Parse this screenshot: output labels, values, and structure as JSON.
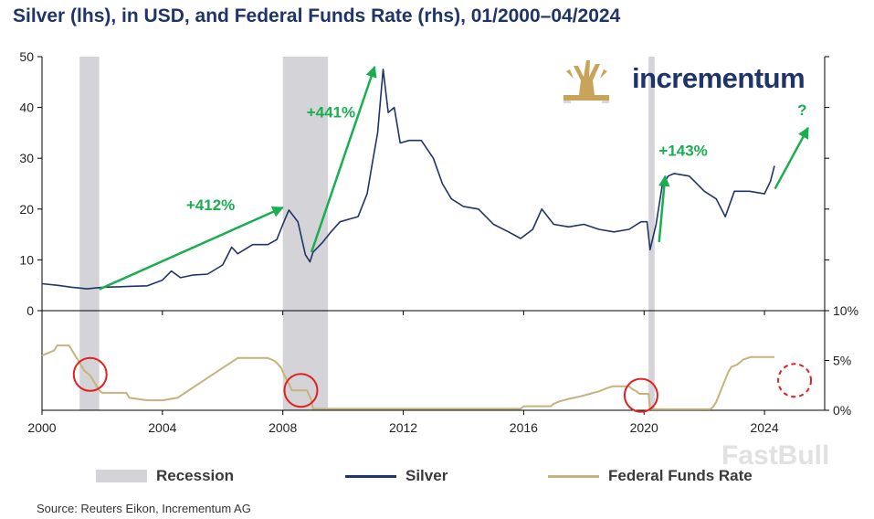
{
  "title": "Silver (lhs), in USD, and Federal Funds Rate (rhs), 01/2000–04/2024",
  "source": "Source: Reuters Eikon, Incrementum AG",
  "brand": "incrementum",
  "watermark": "FastBull",
  "colors": {
    "silver": "#1f3468",
    "fed": "#c8b27c",
    "recession": "#d4d3d8",
    "arrow": "#1aae50",
    "circle": "#e02020",
    "logo": "#c8a45a",
    "title": "#1f3468"
  },
  "legend": [
    {
      "label": "Recession",
      "kind": "recession"
    },
    {
      "label": "Silver",
      "kind": "silver"
    },
    {
      "label": "Federal Funds Rate",
      "kind": "fed"
    }
  ],
  "chart_data": [
    {
      "type": "line",
      "name": "Silver (lhs), in USD",
      "ylim": [
        0,
        50
      ],
      "yticks": [
        0,
        10,
        20,
        30,
        40,
        50
      ],
      "right_axis_ticks": [
        "",
        "",
        "",
        "",
        ""
      ],
      "x": [
        2000.0,
        2000.5,
        2001.0,
        2001.5,
        2002.0,
        2002.5,
        2003.0,
        2003.5,
        2004.0,
        2004.3,
        2004.6,
        2005.0,
        2005.5,
        2006.0,
        2006.3,
        2006.5,
        2007.0,
        2007.5,
        2007.8,
        2008.0,
        2008.2,
        2008.5,
        2008.75,
        2008.9,
        2009.0,
        2009.3,
        2009.6,
        2009.9,
        2010.2,
        2010.5,
        2010.8,
        2011.0,
        2011.15,
        2011.33,
        2011.5,
        2011.7,
        2011.9,
        2012.2,
        2012.6,
        2013.0,
        2013.3,
        2013.6,
        2014.0,
        2014.5,
        2015.0,
        2015.5,
        2015.9,
        2016.3,
        2016.6,
        2017.0,
        2017.5,
        2018.0,
        2018.5,
        2019.0,
        2019.5,
        2019.9,
        2020.1,
        2020.2,
        2020.4,
        2020.6,
        2020.8,
        2021.0,
        2021.5,
        2022.0,
        2022.4,
        2022.7,
        2023.0,
        2023.5,
        2024.0,
        2024.2,
        2024.33
      ],
      "y": [
        5.3,
        5.0,
        4.6,
        4.3,
        4.6,
        4.7,
        4.8,
        4.9,
        6.0,
        7.8,
        6.5,
        7.0,
        7.2,
        9.0,
        12.5,
        11.2,
        13.0,
        13.0,
        14.0,
        17.0,
        19.8,
        17.5,
        11.0,
        9.6,
        11.5,
        13.3,
        15.5,
        17.5,
        18.0,
        18.5,
        23.0,
        30.0,
        35.0,
        47.5,
        39.0,
        40.0,
        33.0,
        33.5,
        33.5,
        30.0,
        25.0,
        22.0,
        20.5,
        20.0,
        17.0,
        15.5,
        14.2,
        16.0,
        20.0,
        17.0,
        16.5,
        17.0,
        16.0,
        15.5,
        16.0,
        17.5,
        17.5,
        12.0,
        17.0,
        24.5,
        26.5,
        27.0,
        26.5,
        23.5,
        22.0,
        18.5,
        23.5,
        23.5,
        23.0,
        25.5,
        28.5
      ]
    },
    {
      "type": "line",
      "name": "Federal Funds Rate (rhs)",
      "ylim": [
        0,
        10
      ],
      "yticks": [
        0,
        5,
        10
      ],
      "ytick_labels": [
        "0%",
        "5%",
        "10%"
      ],
      "x": [
        2000.0,
        2000.4,
        2000.5,
        2000.9,
        2001.0,
        2001.1,
        2001.2,
        2001.3,
        2001.4,
        2001.5,
        2001.6,
        2001.7,
        2001.8,
        2001.9,
        2002.0,
        2002.8,
        2002.9,
        2003.5,
        2004.0,
        2004.5,
        2005.0,
        2005.5,
        2006.0,
        2006.5,
        2007.5,
        2007.7,
        2007.8,
        2007.95,
        2008.05,
        2008.15,
        2008.3,
        2008.8,
        2008.95,
        2009.0,
        2015.9,
        2016.0,
        2016.9,
        2017.0,
        2017.2,
        2017.5,
        2017.9,
        2018.2,
        2018.5,
        2018.7,
        2018.95,
        2019.5,
        2019.6,
        2019.75,
        2019.85,
        2020.15,
        2020.2,
        2022.2,
        2022.3,
        2022.4,
        2022.5,
        2022.6,
        2022.7,
        2022.8,
        2022.9,
        2023.1,
        2023.3,
        2023.55,
        2024.33
      ],
      "y": [
        5.5,
        6.0,
        6.5,
        6.5,
        6.0,
        5.5,
        5.0,
        4.5,
        4.0,
        3.75,
        3.5,
        3.0,
        2.5,
        2.0,
        1.75,
        1.75,
        1.25,
        1.0,
        1.0,
        1.25,
        2.25,
        3.25,
        4.25,
        5.25,
        5.25,
        5.0,
        4.75,
        4.25,
        3.5,
        3.0,
        2.0,
        2.0,
        1.0,
        0.15,
        0.15,
        0.4,
        0.4,
        0.65,
        0.9,
        1.15,
        1.4,
        1.65,
        1.9,
        2.15,
        2.4,
        2.4,
        2.15,
        1.9,
        1.65,
        1.65,
        0.1,
        0.1,
        0.35,
        0.85,
        1.6,
        2.35,
        3.1,
        3.85,
        4.35,
        4.6,
        5.1,
        5.35,
        5.35
      ]
    }
  ],
  "x_axis": {
    "ticks": [
      2000,
      2004,
      2008,
      2012,
      2016,
      2020,
      2024
    ],
    "labels": [
      "2000",
      "2004",
      "2008",
      "2012",
      "2016",
      "2020",
      "2024"
    ],
    "range": [
      2000,
      2026
    ]
  },
  "recessions": [
    {
      "start": 2001.25,
      "end": 2001.9
    },
    {
      "start": 2008.0,
      "end": 2009.5
    },
    {
      "start": 2020.15,
      "end": 2020.35
    }
  ],
  "annotations": [
    {
      "label": "+412%",
      "from": [
        2001.9,
        4.2
      ],
      "to": [
        2008.0,
        20.3
      ],
      "label_at": [
        2005.6,
        19.8
      ]
    },
    {
      "label": "+441%",
      "from": [
        2008.95,
        11.5
      ],
      "to": [
        2011.05,
        48.0
      ],
      "label_at": [
        2009.6,
        38.0
      ]
    },
    {
      "label": "+143%",
      "from": [
        2020.5,
        13.5
      ],
      "to": [
        2020.7,
        26.5
      ],
      "label_at": [
        2021.3,
        30.5
      ]
    },
    {
      "label": "?",
      "from": [
        2024.35,
        24.0
      ],
      "to": [
        2025.45,
        36.0
      ],
      "label_at": [
        2025.25,
        38.5
      ]
    }
  ],
  "circles": [
    {
      "x": 2001.6,
      "y_rate": 3.6,
      "style": "solid"
    },
    {
      "x": 2008.6,
      "y_rate": 2.0,
      "style": "solid"
    },
    {
      "x": 2019.9,
      "y_rate": 1.5,
      "style": "solid"
    },
    {
      "x": 2025.0,
      "y_rate": 3.0,
      "style": "dashed"
    }
  ]
}
